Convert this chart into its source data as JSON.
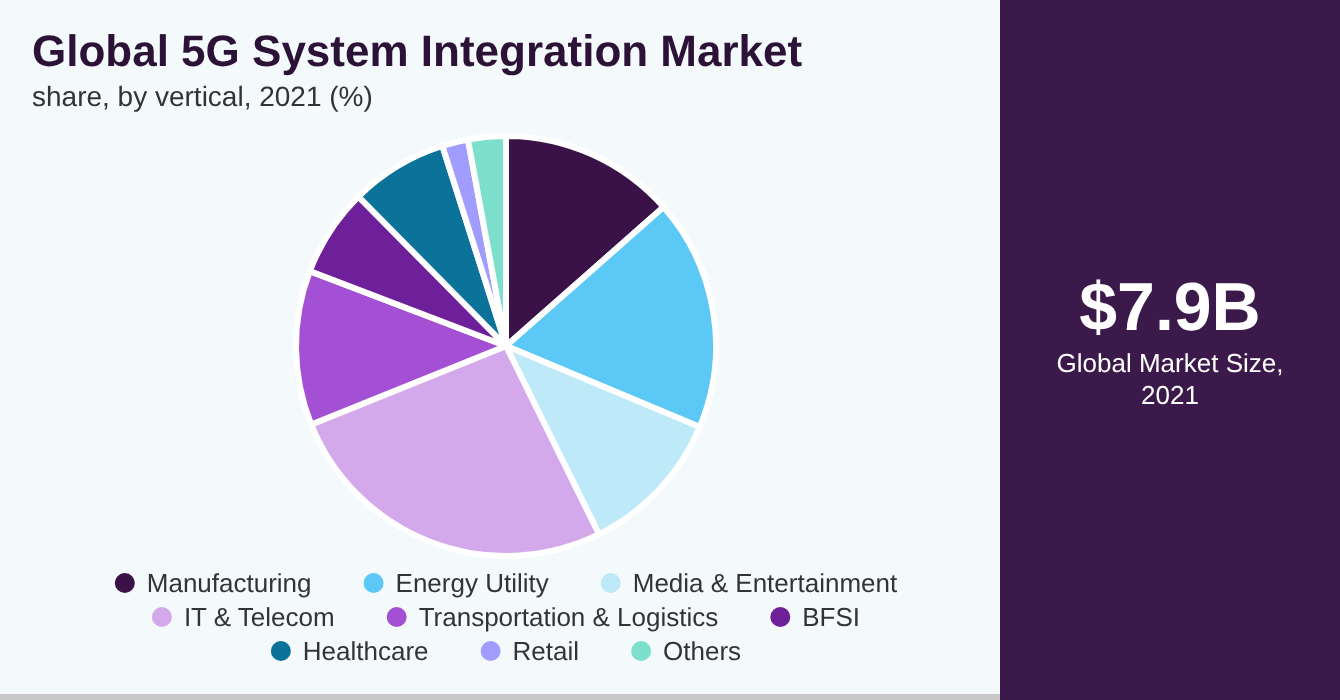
{
  "chart_data": {
    "type": "pie",
    "title": "Global 5G System Integration Market",
    "subtitle": "share, by vertical, 2021 (%)",
    "categories": [
      "Manufacturing",
      "Energy Utility",
      "Media & Entertainment",
      "IT & Telecom",
      "Transportation & Logistics",
      "BFSI",
      "Healthcare",
      "Retail",
      "Others"
    ],
    "values": [
      13.5,
      17.8,
      11.4,
      26.2,
      11.9,
      6.8,
      7.5,
      2.0,
      2.9
    ],
    "colors": [
      "#3a1248",
      "#5bc8f5",
      "#bde9f8",
      "#d4a9ec",
      "#a350d5",
      "#6e1f9a",
      "#0b7399",
      "#a19dff",
      "#7de0cc"
    ],
    "legend": "bottom",
    "annotations": [
      "$7.9B",
      "Global Market Size, 2021"
    ]
  }
}
